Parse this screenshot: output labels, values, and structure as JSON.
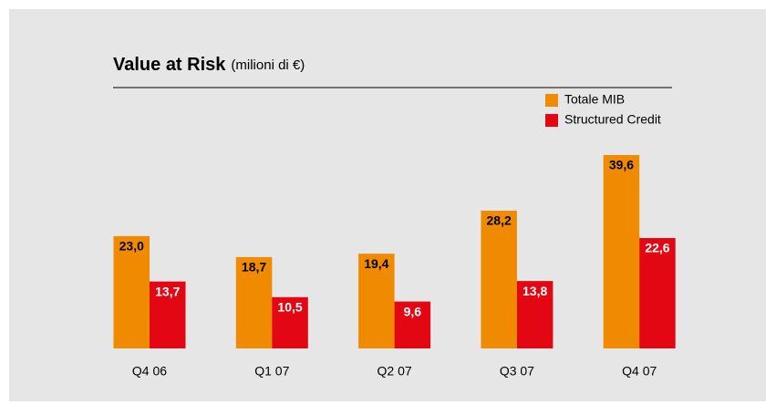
{
  "chart_data": {
    "type": "bar",
    "title": "Value at Risk",
    "subtitle": "(milioni di €)",
    "categories": [
      "Q4 06",
      "Q1 07",
      "Q2 07",
      "Q3 07",
      "Q4 07"
    ],
    "series": [
      {
        "name": "Totale MIB",
        "color": "#f08a00",
        "values": [
          23.0,
          18.7,
          19.4,
          28.2,
          39.6
        ],
        "value_labels": [
          "23,0",
          "18,7",
          "19,4",
          "28,2",
          "39,6"
        ]
      },
      {
        "name": "Structured Credit",
        "color": "#e30613",
        "values": [
          13.7,
          10.5,
          9.6,
          13.8,
          22.6
        ],
        "value_labels": [
          "13,7",
          "10,5",
          "9,6",
          "13,8",
          "22,6"
        ]
      }
    ]
  }
}
